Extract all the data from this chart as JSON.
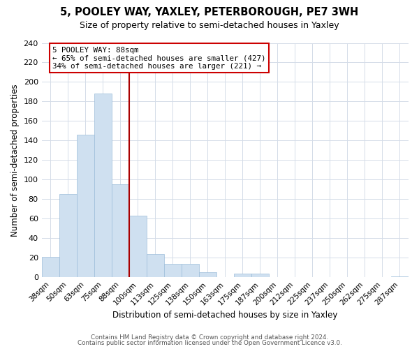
{
  "title": "5, POOLEY WAY, YAXLEY, PETERBOROUGH, PE7 3WH",
  "subtitle": "Size of property relative to semi-detached houses in Yaxley",
  "xlabel": "Distribution of semi-detached houses by size in Yaxley",
  "ylabel": "Number of semi-detached properties",
  "bar_labels": [
    "38sqm",
    "50sqm",
    "63sqm",
    "75sqm",
    "88sqm",
    "100sqm",
    "113sqm",
    "125sqm",
    "138sqm",
    "150sqm",
    "163sqm",
    "175sqm",
    "187sqm",
    "200sqm",
    "212sqm",
    "225sqm",
    "237sqm",
    "250sqm",
    "262sqm",
    "275sqm",
    "287sqm"
  ],
  "bar_values": [
    21,
    85,
    146,
    188,
    95,
    63,
    24,
    14,
    14,
    5,
    0,
    4,
    4,
    0,
    0,
    0,
    0,
    0,
    0,
    0,
    1
  ],
  "bar_color": "#cfe0f0",
  "bar_edge_color": "#9dbdda",
  "vline_index": 4,
  "vline_color": "#aa0000",
  "annotation_title": "5 POOLEY WAY: 88sqm",
  "annotation_line1": "← 65% of semi-detached houses are smaller (427)",
  "annotation_line2": "34% of semi-detached houses are larger (221) →",
  "annotation_box_facecolor": "#ffffff",
  "annotation_box_edgecolor": "#cc0000",
  "ylim": [
    0,
    240
  ],
  "yticks": [
    0,
    20,
    40,
    60,
    80,
    100,
    120,
    140,
    160,
    180,
    200,
    220,
    240
  ],
  "footer1": "Contains HM Land Registry data © Crown copyright and database right 2024.",
  "footer2": "Contains public sector information licensed under the Open Government Licence v3.0.",
  "background_color": "#ffffff",
  "grid_color": "#d4dce8",
  "title_fontsize": 10.5,
  "subtitle_fontsize": 9
}
